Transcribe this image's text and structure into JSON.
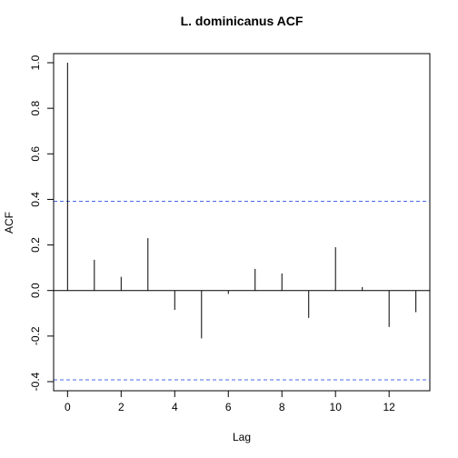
{
  "chart_data": {
    "type": "bar",
    "title": "L. dominicanus ACF",
    "xlabel": "Lag",
    "ylabel": "ACF",
    "x": [
      0,
      1,
      2,
      3,
      4,
      5,
      6,
      7,
      8,
      9,
      10,
      11,
      12,
      13
    ],
    "values": [
      1.0,
      0.135,
      0.06,
      0.23,
      -0.085,
      -0.21,
      -0.015,
      0.095,
      0.075,
      -0.12,
      0.19,
      0.015,
      -0.16,
      -0.095
    ],
    "xlim": [
      -0.52,
      13.52
    ],
    "ylim": [
      -0.44,
      1.04
    ],
    "xticks": [
      0,
      2,
      4,
      6,
      8,
      10,
      12
    ],
    "yticks": [
      -0.4,
      -0.2,
      0.0,
      0.2,
      0.4,
      0.6,
      0.8,
      1.0
    ],
    "xtick_labels": [
      "0",
      "2",
      "4",
      "6",
      "8",
      "10",
      "12"
    ],
    "ytick_labels": [
      "-0.4",
      "-0.2",
      "0.0",
      "0.2",
      "0.4",
      "0.6",
      "0.8",
      "1.0"
    ],
    "zero_line": 0.0,
    "confidence_bound": 0.392,
    "colors": {
      "bars": "#000000",
      "bounds": "#4a68e8",
      "axes": "#000000"
    },
    "grid": false,
    "legend": "none"
  }
}
